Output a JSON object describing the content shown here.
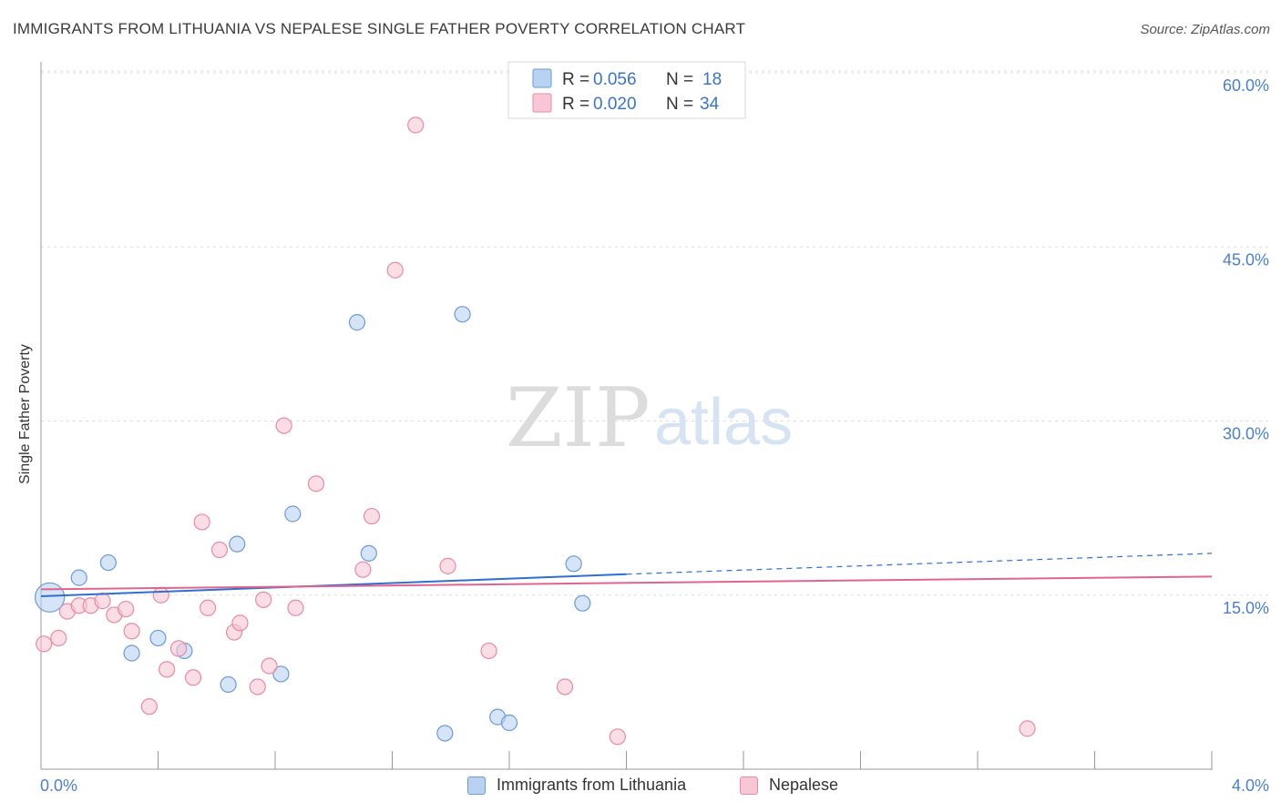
{
  "title": "IMMIGRANTS FROM LITHUANIA VS NEPALESE SINGLE FATHER POVERTY CORRELATION CHART",
  "source": "Source: ZipAtlas.com",
  "watermark": {
    "zip": "ZIP",
    "atlas": "atlas"
  },
  "legend": {
    "rows": [
      {
        "r_label": "R = ",
        "r_value": "0.056",
        "n_label": "N = ",
        "n_value": "18"
      },
      {
        "r_label": "R = ",
        "r_value": "0.020",
        "n_label": "N = ",
        "n_value": "34"
      }
    ]
  },
  "bottom_legend": {
    "series1": "Immigrants from Lithuania",
    "series2": "Nepalese"
  },
  "colors": {
    "blue_fill": "#b9d2f1",
    "blue_stroke": "#6a9ad8",
    "blue_line": "#2e6fd0",
    "pink_fill": "#f8c6d5",
    "pink_stroke": "#e78aa8",
    "pink_line": "#e0648f",
    "axis_text": "#4a7fcf",
    "grid": "#dddddd"
  },
  "chart_data": {
    "type": "scatter",
    "title": "IMMIGRANTS FROM LITHUANIA VS NEPALESE SINGLE FATHER POVERTY CORRELATION CHART",
    "xlabel": "",
    "ylabel": "Single Father Poverty",
    "xlim": [
      0,
      4.0
    ],
    "ylim": [
      0,
      60
    ],
    "x_tick_labels": [
      "0.0%",
      "4.0%"
    ],
    "y_ticks": [
      15,
      30,
      45,
      60
    ],
    "y_tick_labels": [
      "15.0%",
      "30.0%",
      "45.0%",
      "60.0%"
    ],
    "grid": true,
    "series": [
      {
        "name": "Immigrants from Lithuania",
        "R": 0.056,
        "N": 18,
        "points": [
          {
            "x": 0.03,
            "y": 14.8,
            "size": "large"
          },
          {
            "x": 0.13,
            "y": 16.5
          },
          {
            "x": 0.23,
            "y": 17.8
          },
          {
            "x": 0.31,
            "y": 10.0
          },
          {
            "x": 0.4,
            "y": 11.3
          },
          {
            "x": 0.49,
            "y": 10.2
          },
          {
            "x": 0.64,
            "y": 7.3
          },
          {
            "x": 0.67,
            "y": 19.4
          },
          {
            "x": 0.82,
            "y": 8.2
          },
          {
            "x": 0.86,
            "y": 22.0
          },
          {
            "x": 1.08,
            "y": 38.5
          },
          {
            "x": 1.12,
            "y": 18.6
          },
          {
            "x": 1.38,
            "y": 3.1
          },
          {
            "x": 1.44,
            "y": 39.2
          },
          {
            "x": 1.56,
            "y": 4.5
          },
          {
            "x": 1.6,
            "y": 4.0
          },
          {
            "x": 1.82,
            "y": 17.7
          },
          {
            "x": 1.85,
            "y": 14.3
          }
        ],
        "trend": {
          "x0": 0,
          "y0": 14.9,
          "x1": 2.0,
          "y1": 16.8,
          "dashed_to_x": 4.0,
          "dashed_to_y": 18.6
        }
      },
      {
        "name": "Nepalese",
        "R": 0.02,
        "N": 34,
        "points": [
          {
            "x": 0.01,
            "y": 10.8
          },
          {
            "x": 0.06,
            "y": 11.3
          },
          {
            "x": 0.09,
            "y": 13.6
          },
          {
            "x": 0.13,
            "y": 14.1
          },
          {
            "x": 0.17,
            "y": 14.1
          },
          {
            "x": 0.21,
            "y": 14.5
          },
          {
            "x": 0.25,
            "y": 13.3
          },
          {
            "x": 0.29,
            "y": 13.8
          },
          {
            "x": 0.31,
            "y": 11.9
          },
          {
            "x": 0.37,
            "y": 5.4
          },
          {
            "x": 0.41,
            "y": 15.0
          },
          {
            "x": 0.43,
            "y": 8.6
          },
          {
            "x": 0.47,
            "y": 10.4
          },
          {
            "x": 0.52,
            "y": 7.9
          },
          {
            "x": 0.55,
            "y": 21.3
          },
          {
            "x": 0.57,
            "y": 13.9
          },
          {
            "x": 0.61,
            "y": 18.9
          },
          {
            "x": 0.66,
            "y": 11.8
          },
          {
            "x": 0.68,
            "y": 12.6
          },
          {
            "x": 0.74,
            "y": 7.1
          },
          {
            "x": 0.76,
            "y": 14.6
          },
          {
            "x": 0.78,
            "y": 8.9
          },
          {
            "x": 0.83,
            "y": 29.6
          },
          {
            "x": 0.87,
            "y": 13.9
          },
          {
            "x": 0.94,
            "y": 24.6
          },
          {
            "x": 1.1,
            "y": 17.2
          },
          {
            "x": 1.13,
            "y": 21.8
          },
          {
            "x": 1.21,
            "y": 43.0
          },
          {
            "x": 1.28,
            "y": 55.5
          },
          {
            "x": 1.39,
            "y": 17.5
          },
          {
            "x": 1.53,
            "y": 10.2
          },
          {
            "x": 1.79,
            "y": 7.1
          },
          {
            "x": 1.97,
            "y": 2.8
          },
          {
            "x": 3.37,
            "y": 3.5
          }
        ],
        "trend": {
          "x0": 0,
          "y0": 15.5,
          "x1": 4.0,
          "y1": 16.6
        }
      }
    ]
  }
}
